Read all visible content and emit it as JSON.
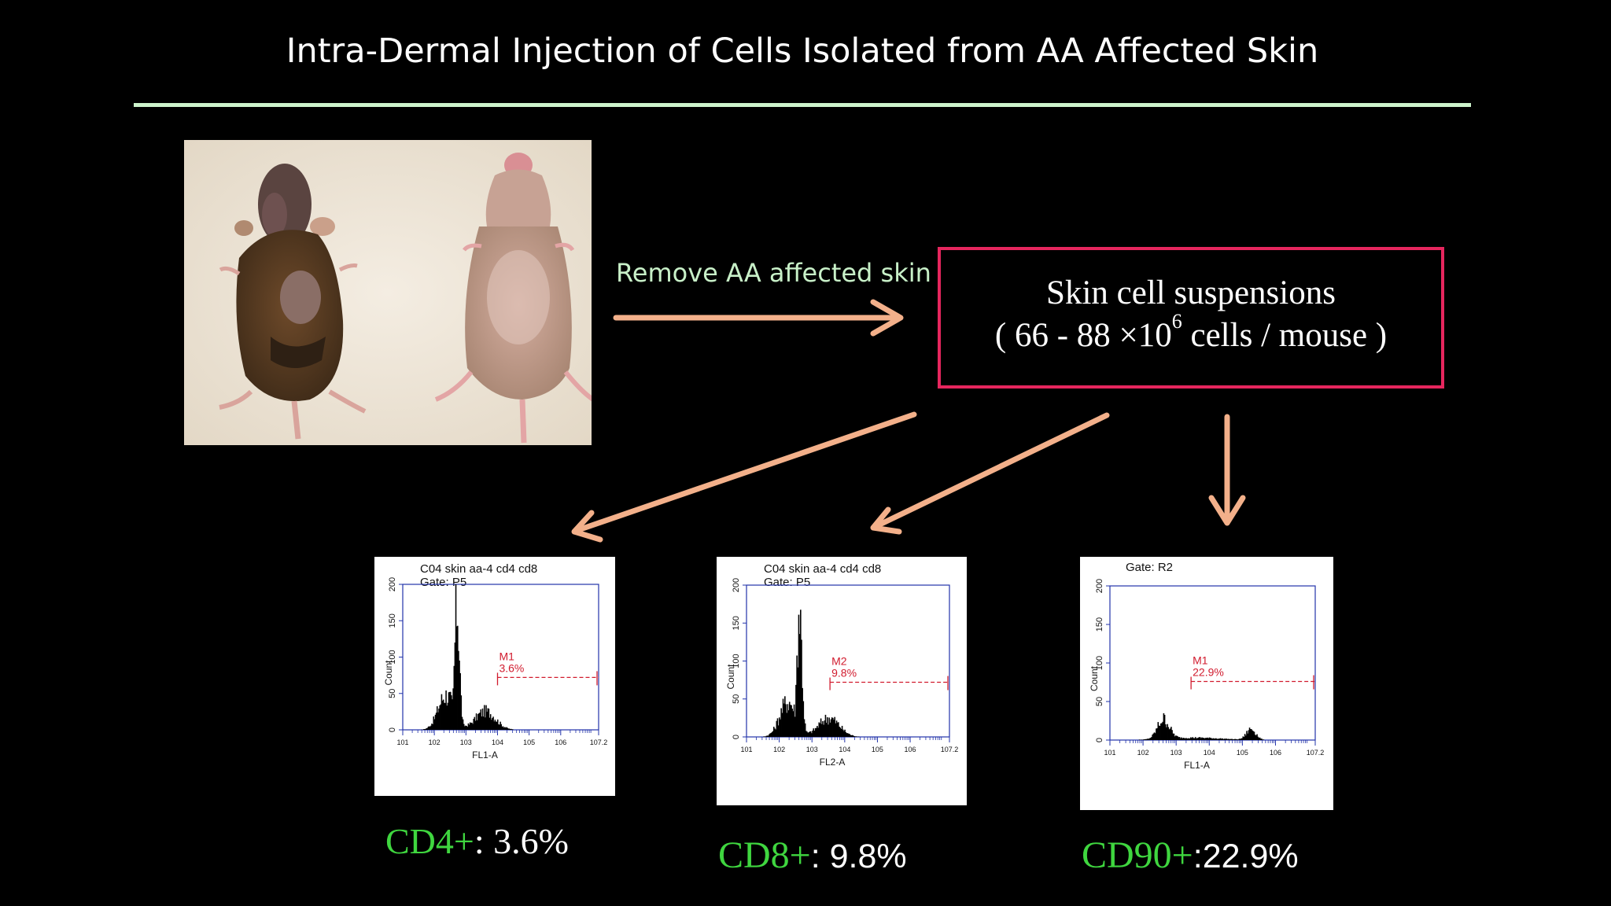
{
  "slide": {
    "title": "Intra-Dermal Injection of Cells Isolated from AA Affected Skin",
    "arrow_label": "Remove AA affected skin",
    "suspension": {
      "line1": "Skin cell  suspensions",
      "line2_prefix": "( 66 - 88 ×10",
      "line2_exp": "6",
      "line2_suffix": " cells  / mouse )"
    },
    "colors": {
      "rule": "#cdf3cc",
      "arrow": "#f3b08a",
      "box": "#e6265e",
      "marker": "#3fd63f",
      "gate": "#d11b2e",
      "axis": "#2233aa"
    }
  },
  "histograms": [
    {
      "header1": "C04 skin aa-4 cd4 cd8",
      "header2": "Gate: P5",
      "xlabel": "FL1-A",
      "ylabel": "Count",
      "gate_name": "M1",
      "gate_pct": "3.6%",
      "yticks": [
        "0",
        "50",
        "100",
        "150",
        "200"
      ],
      "xticks": [
        "10^1",
        "10^2",
        "10^3",
        "10^4",
        "10^5",
        "10^6",
        "10^7.2"
      ]
    },
    {
      "header1": "C04 skin aa-4 cd4 cd8",
      "header2": "Gate: P5",
      "xlabel": "FL2-A",
      "ylabel": "Count",
      "gate_name": "M2",
      "gate_pct": "9.8%",
      "yticks": [
        "0",
        "50",
        "100",
        "150",
        "200"
      ],
      "xticks": [
        "10^1",
        "10^2",
        "10^3",
        "10^4",
        "10^5",
        "10^6",
        "10^7.2"
      ]
    },
    {
      "header1": "",
      "header2": "Gate: R2",
      "xlabel": "FL1-A",
      "ylabel": "Count",
      "gate_name": "M1",
      "gate_pct": "22.9%",
      "yticks": [
        "0",
        "50",
        "100",
        "150",
        "200"
      ],
      "xticks": [
        "10^1",
        "10^2",
        "10^3",
        "10^4",
        "10^5",
        "10^6",
        "10^7.2"
      ]
    }
  ],
  "chart_data": [
    {
      "type": "area",
      "title": "C04 skin aa-4 cd4 cd8",
      "xlabel": "FL1-A",
      "ylabel": "Count",
      "ylim": [
        0,
        200
      ],
      "xlim": [
        "10^1",
        "10^7.2"
      ],
      "log_x": true,
      "peak": {
        "x": "10^2.7",
        "count": 200
      },
      "gate": {
        "name": "M1",
        "percent": 3.6
      }
    },
    {
      "type": "area",
      "title": "C04 skin aa-4 cd4 cd8",
      "xlabel": "FL2-A",
      "ylabel": "Count",
      "ylim": [
        0,
        200
      ],
      "xlim": [
        "10^1",
        "10^7.2"
      ],
      "log_x": true,
      "peak": {
        "x": "10^2.6",
        "count": 195
      },
      "gate": {
        "name": "M2",
        "percent": 9.8
      }
    },
    {
      "type": "area",
      "title": "Gate: R2",
      "xlabel": "FL1-A",
      "ylabel": "Count",
      "ylim": [
        0,
        200
      ],
      "xlim": [
        "10^1",
        "10^7.2"
      ],
      "log_x": true,
      "peak": {
        "x": "10^2.6",
        "count": 30
      },
      "gate": {
        "name": "M1",
        "percent": 22.9
      }
    }
  ],
  "results": [
    {
      "marker": "CD4+",
      "value": ": 3.6%"
    },
    {
      "marker": "CD8+",
      "value": ": 9.8%"
    },
    {
      "marker": "CD90+",
      "value": ":22.9%"
    }
  ]
}
